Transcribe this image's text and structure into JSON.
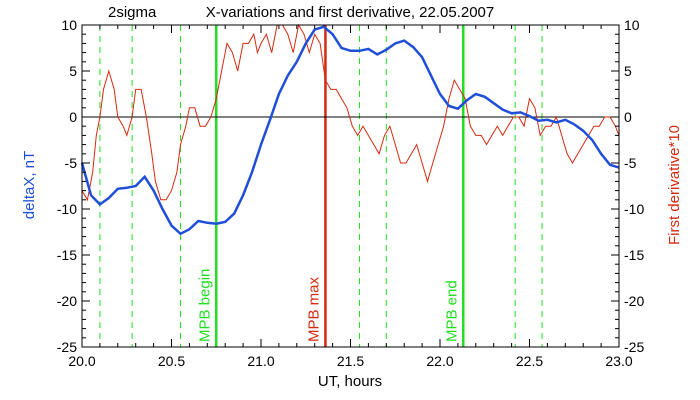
{
  "chart_data": {
    "type": "line",
    "title": "X-variations and first derivative, 22.05.2007",
    "label_top_left": "2sigma",
    "xlabel": "UT, hours",
    "ylabel_left": "deltaX, nT",
    "ylabel_right": "First derivative*10",
    "xlim": [
      20.0,
      23.0
    ],
    "ylim": [
      -25,
      10
    ],
    "xticks": [
      "20.0",
      "20.5",
      "21.0",
      "21.5",
      "22.0",
      "22.5",
      "23.0"
    ],
    "yticks": [
      "10",
      "5",
      "0",
      "-5",
      "-10",
      "-15",
      "-20",
      "-25"
    ],
    "grid": false,
    "colors": {
      "blue": "#1f4fd8",
      "red": "#d42a10",
      "green": "#22dd22"
    },
    "series": [
      {
        "name": "deltaX, nT",
        "axis": "left",
        "color": "#1f4fd8",
        "x": [
          20.0,
          20.05,
          20.1,
          20.15,
          20.2,
          20.25,
          20.3,
          20.35,
          20.4,
          20.45,
          20.5,
          20.55,
          20.6,
          20.65,
          20.7,
          20.75,
          20.8,
          20.85,
          20.9,
          20.95,
          21.0,
          21.05,
          21.1,
          21.15,
          21.2,
          21.25,
          21.3,
          21.35,
          21.4,
          21.45,
          21.5,
          21.55,
          21.6,
          21.65,
          21.7,
          21.75,
          21.8,
          21.85,
          21.9,
          21.95,
          22.0,
          22.05,
          22.1,
          22.15,
          22.2,
          22.25,
          22.3,
          22.35,
          22.4,
          22.45,
          22.5,
          22.55,
          22.6,
          22.65,
          22.7,
          22.75,
          22.8,
          22.85,
          22.9,
          22.95,
          23.0
        ],
        "values": [
          -5.0,
          -8.5,
          -9.5,
          -8.8,
          -7.8,
          -7.7,
          -7.5,
          -6.5,
          -8.0,
          -10.0,
          -11.8,
          -12.7,
          -12.2,
          -11.3,
          -11.5,
          -11.6,
          -11.4,
          -10.5,
          -8.5,
          -6.0,
          -3.0,
          -0.3,
          2.5,
          4.5,
          6.0,
          8.0,
          9.5,
          9.8,
          9.0,
          7.5,
          7.2,
          7.2,
          7.4,
          6.8,
          7.3,
          8.0,
          8.3,
          7.6,
          6.5,
          4.5,
          2.5,
          1.2,
          0.9,
          1.8,
          2.5,
          2.2,
          1.5,
          0.8,
          0.4,
          0.5,
          0.1,
          -0.4,
          -0.3,
          -0.6,
          -0.3,
          -0.8,
          -1.5,
          -2.5,
          -4.0,
          -5.2,
          -5.5
        ]
      },
      {
        "name": "First derivative*10",
        "axis": "right",
        "color": "#d42a10",
        "x": [
          20.0,
          20.03,
          20.06,
          20.08,
          20.1,
          20.12,
          20.15,
          20.18,
          20.2,
          20.23,
          20.25,
          20.28,
          20.3,
          20.33,
          20.36,
          20.39,
          20.41,
          20.44,
          20.47,
          20.5,
          20.53,
          20.55,
          20.58,
          20.6,
          20.63,
          20.66,
          20.69,
          20.72,
          20.75,
          20.78,
          20.81,
          20.84,
          20.87,
          20.9,
          20.93,
          20.96,
          20.98,
          21.0,
          21.03,
          21.06,
          21.09,
          21.12,
          21.15,
          21.18,
          21.21,
          21.24,
          21.27,
          21.3,
          21.33,
          21.36,
          21.39,
          21.42,
          21.45,
          21.48,
          21.51,
          21.54,
          21.57,
          21.6,
          21.63,
          21.66,
          21.69,
          21.72,
          21.75,
          21.78,
          21.81,
          21.84,
          21.87,
          21.9,
          21.93,
          21.96,
          21.99,
          22.02,
          22.05,
          22.08,
          22.11,
          22.14,
          22.17,
          22.2,
          22.23,
          22.26,
          22.29,
          22.32,
          22.35,
          22.38,
          22.41,
          22.44,
          22.47,
          22.5,
          22.53,
          22.56,
          22.59,
          22.62,
          22.65,
          22.68,
          22.71,
          22.74,
          22.77,
          22.8,
          22.83,
          22.86,
          22.89,
          22.92,
          22.95,
          22.98,
          23.0
        ],
        "values": [
          -8,
          -9,
          -6,
          -2,
          0,
          3,
          5,
          3,
          0,
          -1,
          -2,
          0,
          3,
          3,
          0,
          -4,
          -7,
          -9,
          -9,
          -8,
          -6,
          -3,
          -1,
          1,
          1,
          -1,
          -1,
          0,
          2,
          5,
          8,
          7,
          5,
          8,
          8,
          9,
          7,
          8,
          9,
          7,
          10,
          10,
          9,
          7,
          10,
          9,
          7,
          9,
          8,
          4,
          3,
          3,
          2,
          1,
          -1,
          -2,
          -1,
          -2,
          -3,
          -4,
          -2,
          -1,
          -3,
          -5,
          -5,
          -4,
          -3,
          -5,
          -7,
          -5,
          -3,
          -1,
          2,
          4,
          3,
          2,
          -1,
          -2,
          -2,
          -3,
          -2,
          -1,
          -2,
          -1,
          0,
          0,
          -1,
          2,
          1,
          -2,
          -1,
          -1,
          0,
          -2,
          -4,
          -5,
          -4,
          -3,
          -2,
          -1,
          -1,
          0,
          0,
          -1,
          -2
        ]
      }
    ],
    "vlines": [
      {
        "x": 20.1,
        "color": "#22dd22",
        "style": "dashed",
        "label": ""
      },
      {
        "x": 20.28,
        "color": "#22dd22",
        "style": "dashed",
        "label": ""
      },
      {
        "x": 20.55,
        "color": "#22dd22",
        "style": "dashed",
        "label": ""
      },
      {
        "x": 20.75,
        "color": "#22dd22",
        "style": "solid",
        "label": "MPB begin"
      },
      {
        "x": 21.36,
        "color": "#d42a10",
        "style": "solid",
        "label": "MPB max"
      },
      {
        "x": 21.55,
        "color": "#22dd22",
        "style": "dashed",
        "label": ""
      },
      {
        "x": 21.7,
        "color": "#22dd22",
        "style": "dashed",
        "label": ""
      },
      {
        "x": 22.13,
        "color": "#22dd22",
        "style": "solid",
        "label": "MPB end"
      },
      {
        "x": 22.42,
        "color": "#22dd22",
        "style": "dashed",
        "label": ""
      },
      {
        "x": 22.57,
        "color": "#22dd22",
        "style": "dashed",
        "label": ""
      }
    ]
  }
}
